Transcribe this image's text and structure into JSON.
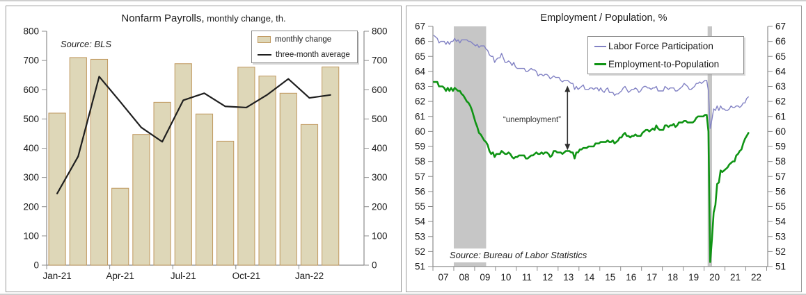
{
  "panels": {
    "left": {
      "title_main": "Nonfarm Payrolls,",
      "title_sub": " monthly change, th.",
      "source": "Source: BLS",
      "legend": [
        {
          "label": "monthly change",
          "swatch": "bar-swatch"
        },
        {
          "label": "three-month average",
          "swatch": "line-swatch"
        }
      ]
    },
    "right": {
      "title": "Employment / Population, %",
      "source": "Source: Bureau of Labor Statistics",
      "legend": [
        {
          "label": "Labor Force Participation",
          "color": "#8282c4"
        },
        {
          "label": "Employment-to-Population",
          "color": "#0f9414"
        }
      ],
      "annotation": "“unemployment”"
    }
  },
  "chart_data": [
    {
      "type": "bar",
      "title": "Nonfarm Payrolls, monthly change, th.",
      "categories": [
        "Jan-21",
        "Feb-21",
        "Mar-21",
        "Apr-21",
        "May-21",
        "Jun-21",
        "Jul-21",
        "Aug-21",
        "Sep-21",
        "Oct-21",
        "Nov-21",
        "Dec-21",
        "Jan-22",
        "Feb-22"
      ],
      "x_tick_labels": [
        "Jan-21",
        "Apr-21",
        "Jul-21",
        "Oct-21",
        "Jan-22"
      ],
      "x_tick_positions": [
        0,
        3,
        6,
        9,
        12
      ],
      "ylim": [
        0,
        800
      ],
      "ytick_step": 100,
      "grid": false,
      "legend_position": "top-right",
      "axis_color": "#8c8c8c",
      "source": "Source: BLS",
      "series": [
        {
          "name": "monthly change",
          "type": "bar",
          "color": "#ded7b8",
          "border": "#c0985e",
          "values": [
            520,
            710,
            704,
            263,
            447,
            557,
            689,
            517,
            424,
            677,
            647,
            588,
            481,
            678
          ]
        },
        {
          "name": "three-month average",
          "type": "line",
          "color": "#1f1f1f",
          "values": [
            245,
            372,
            645,
            559,
            471,
            422,
            564,
            588,
            543,
            539,
            583,
            637,
            572,
            582
          ]
        }
      ]
    },
    {
      "type": "line",
      "title": "Employment / Population, %",
      "x_start_year": 2007,
      "points_per_year": 12,
      "xlim": [
        2007,
        2023.05
      ],
      "ylim": [
        51,
        67
      ],
      "ytick_step": 1,
      "grid": false,
      "legend_position": "top-right",
      "axis_color": "#8c8c8c",
      "band_color": "#c6c6c6",
      "source": "Source: Bureau of Labor Statistics",
      "x_tick_labels": [
        "07",
        "08",
        "09",
        "10",
        "11",
        "12",
        "13",
        "14",
        "15",
        "16",
        "17",
        "18",
        "19",
        "20",
        "21",
        "22"
      ],
      "recession_bands": [
        {
          "from": 2008.0,
          "to": 2009.55
        },
        {
          "from": 2020.17,
          "to": 2020.38
        }
      ],
      "annotation": {
        "text": "“unemployment”",
        "x": 2013.45,
        "y_top": 63.05,
        "y_bottom": 58.75
      },
      "series": [
        {
          "name": "Labor Force Participation",
          "color": "#8282c4",
          "width": 1.4,
          "values": [
            66.4,
            66.3,
            66.2,
            65.9,
            66.0,
            66.0,
            66.0,
            65.8,
            66.0,
            65.8,
            66.0,
            66.0,
            66.2,
            66.0,
            66.1,
            65.9,
            66.1,
            66.1,
            66.1,
            66.1,
            66.0,
            66.0,
            65.9,
            65.8,
            65.7,
            65.8,
            65.6,
            65.7,
            65.7,
            65.7,
            65.5,
            65.4,
            65.1,
            65.0,
            65.0,
            64.6,
            64.8,
            64.9,
            64.9,
            65.2,
            64.9,
            64.6,
            64.6,
            64.7,
            64.6,
            64.4,
            64.6,
            64.3,
            64.2,
            64.2,
            64.2,
            64.2,
            64.2,
            64.0,
            64.0,
            64.1,
            64.2,
            64.1,
            64.1,
            64.0,
            63.7,
            63.8,
            63.8,
            63.7,
            63.8,
            63.8,
            63.7,
            63.5,
            63.6,
            63.7,
            63.6,
            63.6,
            63.6,
            63.4,
            63.3,
            63.4,
            63.4,
            63.4,
            63.3,
            63.2,
            63.2,
            62.8,
            63.0,
            62.8,
            62.9,
            63.0,
            63.1,
            62.8,
            62.8,
            62.8,
            62.9,
            62.9,
            62.8,
            62.9,
            62.9,
            62.7,
            62.9,
            62.7,
            62.6,
            62.8,
            62.9,
            62.6,
            62.6,
            62.6,
            62.4,
            62.5,
            62.5,
            62.6,
            62.7,
            62.9,
            63.0,
            62.8,
            62.6,
            62.7,
            62.8,
            62.8,
            62.9,
            62.8,
            62.6,
            62.7,
            62.9,
            63.0,
            63.0,
            62.9,
            62.9,
            62.8,
            62.9,
            62.9,
            63.0,
            62.7,
            62.7,
            62.7,
            62.7,
            63.0,
            62.9,
            62.8,
            62.9,
            62.9,
            62.9,
            62.7,
            62.7,
            62.8,
            62.9,
            63.0,
            63.2,
            63.1,
            63.0,
            62.8,
            62.8,
            62.9,
            63.0,
            63.2,
            63.2,
            63.3,
            63.2,
            63.3,
            63.4,
            63.4,
            62.7,
            60.2,
            60.8,
            61.5,
            61.4,
            61.7,
            61.4,
            61.7,
            61.5,
            61.5,
            61.4,
            61.4,
            61.5,
            61.7,
            61.6,
            61.6,
            61.7,
            61.7,
            61.6,
            61.7,
            61.9,
            61.9,
            62.2,
            62.3
          ]
        },
        {
          "name": "Employment-to-Population",
          "color": "#0f9414",
          "width": 2.6,
          "values": [
            63.3,
            63.3,
            63.3,
            63.0,
            63.0,
            63.0,
            62.9,
            62.7,
            62.9,
            62.7,
            62.9,
            62.7,
            62.9,
            62.8,
            62.7,
            62.7,
            62.5,
            62.4,
            62.2,
            62.0,
            61.9,
            61.7,
            61.4,
            61.0,
            60.6,
            60.3,
            59.9,
            59.8,
            59.6,
            59.4,
            59.3,
            59.1,
            58.7,
            58.5,
            58.6,
            58.3,
            58.5,
            58.5,
            58.5,
            58.7,
            58.6,
            58.5,
            58.5,
            58.6,
            58.5,
            58.3,
            58.2,
            58.3,
            58.3,
            58.4,
            58.4,
            58.4,
            58.4,
            58.2,
            58.2,
            58.3,
            58.4,
            58.4,
            58.5,
            58.6,
            58.5,
            58.5,
            58.6,
            58.5,
            58.6,
            58.6,
            58.5,
            58.3,
            58.4,
            58.7,
            58.7,
            58.6,
            58.6,
            58.6,
            58.5,
            58.6,
            58.7,
            58.7,
            58.7,
            58.6,
            58.6,
            58.2,
            58.6,
            58.6,
            58.8,
            58.8,
            58.9,
            58.9,
            58.9,
            59.0,
            59.0,
            59.0,
            59.0,
            59.2,
            59.2,
            59.2,
            59.3,
            59.3,
            59.3,
            59.3,
            59.4,
            59.3,
            59.3,
            59.4,
            59.2,
            59.3,
            59.4,
            59.6,
            59.6,
            59.8,
            59.9,
            59.7,
            59.7,
            59.6,
            59.7,
            59.7,
            59.8,
            59.7,
            59.7,
            59.7,
            59.9,
            60.0,
            60.1,
            60.1,
            60.0,
            60.1,
            60.2,
            60.1,
            60.4,
            60.2,
            60.1,
            60.1,
            60.1,
            60.4,
            60.4,
            60.3,
            60.4,
            60.4,
            60.5,
            60.3,
            60.4,
            60.6,
            60.6,
            60.6,
            60.7,
            60.7,
            60.6,
            60.6,
            60.6,
            60.6,
            60.7,
            60.9,
            61.0,
            61.0,
            61.0,
            61.0,
            61.1,
            61.1,
            60.0,
            51.3,
            52.8,
            54.6,
            55.1,
            56.5,
            56.6,
            57.4,
            57.3,
            57.4,
            57.5,
            57.6,
            57.8,
            57.9,
            58.0,
            58.0,
            58.4,
            58.5,
            58.7,
            58.8,
            59.2,
            59.5,
            59.7,
            59.9
          ]
        }
      ]
    }
  ]
}
